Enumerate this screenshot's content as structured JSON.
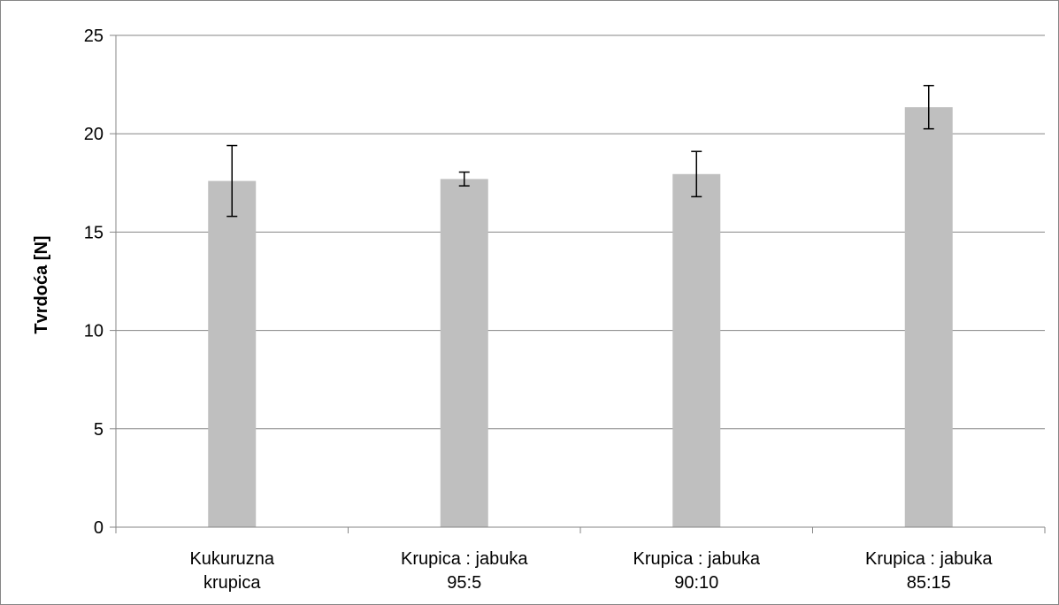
{
  "chart_data": {
    "type": "bar",
    "title": "",
    "xlabel": "",
    "ylabel": "Tvrdoća [N]",
    "ylim": [
      0,
      25
    ],
    "yticks": [
      0,
      5,
      10,
      15,
      20,
      25
    ],
    "grid": true,
    "legend": "none",
    "categories": [
      [
        "Kukuruzna",
        "krupica"
      ],
      [
        "Krupica : jabuka",
        "95:5"
      ],
      [
        "Krupica : jabuka",
        "90:10"
      ],
      [
        "Krupica : jabuka",
        "85:15"
      ]
    ],
    "series": [
      {
        "values": [
          17.6,
          17.7,
          17.95,
          21.35
        ],
        "error": [
          1.8,
          0.35,
          1.15,
          1.1
        ],
        "color": "#bfbfbf"
      }
    ],
    "colors": {
      "gridline": "#868686",
      "axis": "#868686",
      "error_bar": "#000000"
    }
  }
}
